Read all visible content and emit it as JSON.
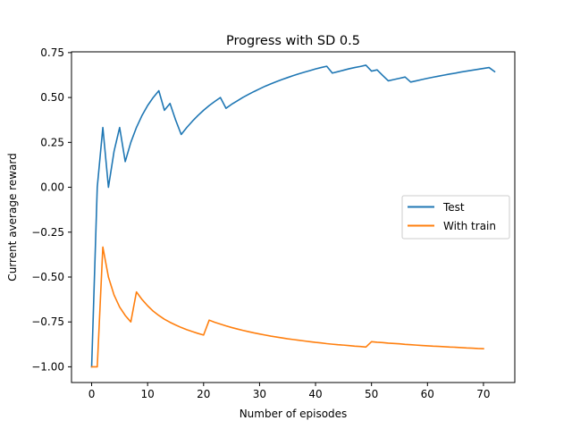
{
  "chart_data": {
    "type": "line",
    "title": "Progress with SD 0.5",
    "xlabel": "Number of episodes",
    "ylabel": "Current average reward",
    "xlim": [
      -3.6,
      75.6
    ],
    "ylim": [
      -1.0875,
      0.7544
    ],
    "xticks": [
      0,
      10,
      20,
      30,
      40,
      50,
      60,
      70
    ],
    "yticks": [
      -1.0,
      -0.75,
      -0.5,
      -0.25,
      0.0,
      0.25,
      0.5,
      0.75
    ],
    "ytick_labels": [
      "−1.00",
      "−0.75",
      "−0.50",
      "−0.25",
      "0.00",
      "0.25",
      "0.50",
      "0.75"
    ],
    "grid": false,
    "legend_position": "center-right",
    "series": [
      {
        "name": "Test",
        "color": "#1f77b4",
        "x": [
          0,
          1,
          2,
          3,
          4,
          5,
          6,
          7,
          8,
          9,
          10,
          11,
          12,
          13,
          14,
          15,
          16,
          17,
          18,
          19,
          20,
          21,
          22,
          23,
          24,
          25,
          26,
          27,
          28,
          29,
          30,
          31,
          32,
          33,
          34,
          35,
          36,
          37,
          38,
          39,
          40,
          41,
          42,
          43,
          44,
          45,
          46,
          47,
          48,
          49,
          50,
          51,
          52,
          53,
          54,
          55,
          56,
          57,
          58,
          59,
          60,
          61,
          62,
          63,
          64,
          65,
          66,
          67,
          68,
          69,
          70,
          71,
          72
        ],
        "y": [
          -1.0,
          0.0,
          0.333,
          0.0,
          0.2,
          0.333,
          0.143,
          0.25,
          0.333,
          0.4,
          0.455,
          0.5,
          0.538,
          0.429,
          0.467,
          0.375,
          0.294,
          0.333,
          0.368,
          0.4,
          0.429,
          0.455,
          0.478,
          0.5,
          0.44,
          0.462,
          0.481,
          0.5,
          0.517,
          0.533,
          0.548,
          0.563,
          0.576,
          0.588,
          0.6,
          0.611,
          0.622,
          0.632,
          0.641,
          0.65,
          0.659,
          0.667,
          0.674,
          0.636,
          0.644,
          0.652,
          0.66,
          0.667,
          0.673,
          0.68,
          0.647,
          0.654,
          0.623,
          0.593,
          0.6,
          0.607,
          0.614,
          0.586,
          0.593,
          0.6,
          0.607,
          0.613,
          0.619,
          0.625,
          0.631,
          0.636,
          0.642,
          0.647,
          0.652,
          0.657,
          0.662,
          0.667,
          0.644
        ]
      },
      {
        "name": "With train",
        "color": "#ff7f0e",
        "x": [
          0,
          1,
          2,
          3,
          4,
          5,
          6,
          7,
          8,
          9,
          10,
          11,
          12,
          13,
          14,
          15,
          16,
          17,
          18,
          19,
          20,
          21,
          22,
          23,
          24,
          25,
          26,
          27,
          28,
          29,
          30,
          31,
          32,
          33,
          34,
          35,
          36,
          37,
          38,
          39,
          40,
          41,
          42,
          43,
          44,
          45,
          46,
          47,
          48,
          49,
          50,
          51,
          52,
          53,
          54,
          55,
          56,
          57,
          58,
          59,
          60,
          61,
          62,
          63,
          64,
          65,
          66,
          67,
          68,
          69,
          70
        ],
        "y": [
          -1.0,
          -1.0,
          -0.333,
          -0.5,
          -0.6,
          -0.667,
          -0.714,
          -0.75,
          -0.583,
          -0.625,
          -0.66,
          -0.69,
          -0.714,
          -0.735,
          -0.752,
          -0.767,
          -0.781,
          -0.793,
          -0.804,
          -0.814,
          -0.823,
          -0.74,
          -0.752,
          -0.762,
          -0.772,
          -0.781,
          -0.789,
          -0.797,
          -0.804,
          -0.811,
          -0.817,
          -0.823,
          -0.829,
          -0.834,
          -0.839,
          -0.844,
          -0.848,
          -0.852,
          -0.856,
          -0.86,
          -0.864,
          -0.867,
          -0.871,
          -0.874,
          -0.877,
          -0.879,
          -0.882,
          -0.885,
          -0.887,
          -0.89,
          -0.86,
          -0.863,
          -0.865,
          -0.868,
          -0.87,
          -0.872,
          -0.875,
          -0.877,
          -0.879,
          -0.881,
          -0.883,
          -0.885,
          -0.886,
          -0.888,
          -0.89,
          -0.891,
          -0.893,
          -0.895,
          -0.896,
          -0.898,
          -0.899
        ]
      }
    ]
  }
}
